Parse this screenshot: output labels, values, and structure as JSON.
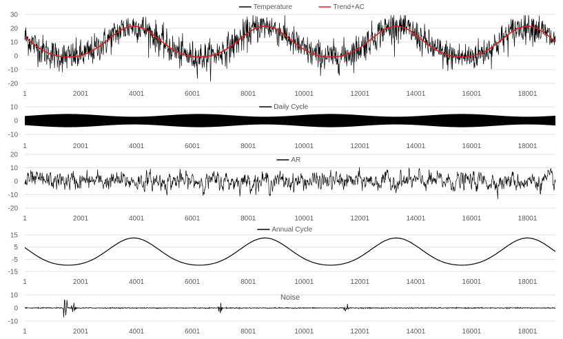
{
  "chart_data": [
    {
      "type": "line",
      "title": "",
      "series": [
        {
          "name": "Temperature",
          "kind": "noisy",
          "amplitude": 5.5
        },
        {
          "name": "Trend+AC",
          "kind": "smooth",
          "amplitude": 0
        }
      ],
      "annual_cycle": {
        "mean": 9,
        "amplitude": 12.5,
        "period": 4700,
        "peak_x": 3900
      },
      "ylim": [
        -20,
        30
      ],
      "yticks": [
        30,
        20,
        10,
        0,
        -10,
        -20
      ],
      "x_range": [
        1,
        19000
      ],
      "xticks": [
        1,
        2001,
        4001,
        6001,
        8001,
        10001,
        12001,
        14001,
        16001,
        18001
      ],
      "colors": {
        "Temperature": "#000000",
        "Trend+AC": "#d81e1e"
      },
      "legend_position": "top-center",
      "grid": "horizontal"
    },
    {
      "type": "area",
      "title": "",
      "series": [
        {
          "name": "Daily Cycle",
          "kind": "band",
          "envelope_low": 2.8,
          "envelope_high": 4.8
        }
      ],
      "ylim": [
        -10,
        10
      ],
      "yticks": [
        10,
        0,
        -10
      ],
      "x_range": [
        1,
        19000
      ],
      "xticks": [
        1,
        2001,
        4001,
        6001,
        8001,
        10001,
        12001,
        14001,
        16001,
        18001
      ],
      "colors": {
        "Daily Cycle": "#000000"
      },
      "legend_position": "top-center",
      "grid": "horizontal"
    },
    {
      "type": "line",
      "title": "",
      "series": [
        {
          "name": "AR",
          "kind": "noisy",
          "amplitude": 3.5
        }
      ],
      "ylim": [
        -20,
        20
      ],
      "yticks": [
        20,
        10,
        0,
        -10,
        -20
      ],
      "x_range": [
        1,
        19000
      ],
      "xticks": [
        1,
        2001,
        4001,
        6001,
        8001,
        10001,
        12001,
        14001,
        16001,
        18001
      ],
      "colors": {
        "AR": "#000000"
      },
      "legend_position": "top-center",
      "grid": "horizontal"
    },
    {
      "type": "line",
      "title": "",
      "series": [
        {
          "name": "Annual Cycle",
          "kind": "smooth"
        }
      ],
      "annual_cycle": {
        "mean": 0,
        "amplitude": 12.5,
        "period": 4700,
        "peak_x": 3900
      },
      "ylim": [
        -15,
        15
      ],
      "yticks": [
        15,
        5,
        -5,
        -15
      ],
      "x_range": [
        1,
        19000
      ],
      "xticks": [
        1,
        2001,
        4001,
        6001,
        8001,
        10001,
        12001,
        14001,
        16001,
        18001
      ],
      "colors": {
        "Annual Cycle": "#000000"
      },
      "legend_position": "top-center",
      "grid": "horizontal"
    },
    {
      "type": "line",
      "title": "Noise",
      "series": [
        {
          "name": "",
          "kind": "spiky",
          "amplitude": 0.3,
          "bursts": [
            {
              "x": 1450,
              "amp": 5
            },
            {
              "x": 1750,
              "amp": 4
            },
            {
              "x": 7000,
              "amp": 3
            },
            {
              "x": 11500,
              "amp": 2
            }
          ]
        }
      ],
      "ylim": [
        -10,
        10
      ],
      "yticks": [
        10,
        0,
        -10
      ],
      "x_range": [
        1,
        19000
      ],
      "xticks": [
        1,
        2001,
        4001,
        6001,
        8001,
        10001,
        12001,
        14001,
        16001,
        18001
      ],
      "colors": {
        "Noise": "#000000"
      },
      "grid": "horizontal"
    }
  ]
}
